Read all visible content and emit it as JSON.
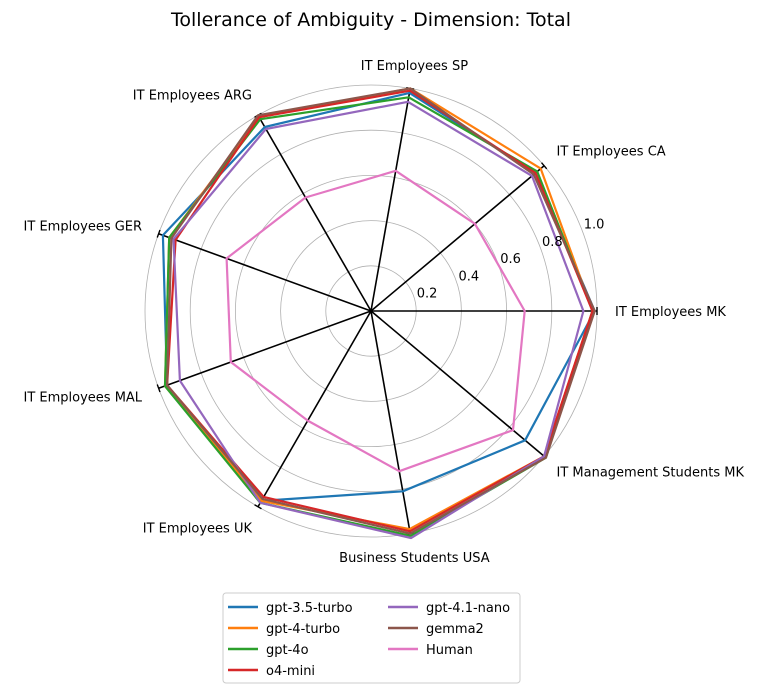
{
  "chart_data": {
    "type": "radar",
    "title": "Tollerance of Ambiguity - Dimension: Total",
    "axes": [
      "IT Employees MK",
      "IT Employees CA",
      "IT Employees SP",
      "IT Employees ARG",
      "IT Employees GER",
      "IT Employees MAL",
      "IT Employees UK",
      "Business Students USA",
      "IT Management Students MK"
    ],
    "rlim": [
      0,
      1.0
    ],
    "rticks": [
      "0.2",
      "0.4",
      "0.6",
      "0.8",
      "1.0"
    ],
    "grid": true,
    "legend_position": "bottom-center",
    "series": [
      {
        "name": "gpt-3.5-turbo",
        "color": "#1f77b4",
        "values": [
          0.99,
          0.95,
          0.98,
          0.94,
          0.98,
          0.96,
          0.97,
          0.81,
          0.89
        ]
      },
      {
        "name": "gpt-4-turbo",
        "color": "#ff7f0e",
        "values": [
          0.98,
          0.98,
          1.0,
          0.99,
          0.95,
          0.97,
          0.97,
          0.98,
          1.0
        ]
      },
      {
        "name": "gpt-4o",
        "color": "#2ca02c",
        "values": [
          0.98,
          0.96,
          0.96,
          0.98,
          0.95,
          0.97,
          0.98,
          1.01,
          1.01
        ]
      },
      {
        "name": "o4-mini",
        "color": "#d62728",
        "values": [
          0.98,
          0.95,
          0.99,
          0.99,
          0.92,
          0.96,
          0.95,
          0.99,
          1.0
        ]
      },
      {
        "name": "gpt-4.1-nano",
        "color": "#9467bd",
        "values": [
          0.94,
          0.93,
          0.94,
          0.93,
          0.93,
          0.9,
          0.98,
          1.02,
          1.0
        ]
      },
      {
        "name": "gemma2",
        "color": "#8c564b",
        "values": [
          0.99,
          0.94,
          1.0,
          1.0,
          0.94,
          0.96,
          0.96,
          1.0,
          1.01
        ]
      },
      {
        "name": "Human",
        "color": "#e377c2",
        "values": [
          0.68,
          0.6,
          0.63,
          0.58,
          0.68,
          0.66,
          0.56,
          0.72,
          0.82
        ]
      }
    ]
  }
}
